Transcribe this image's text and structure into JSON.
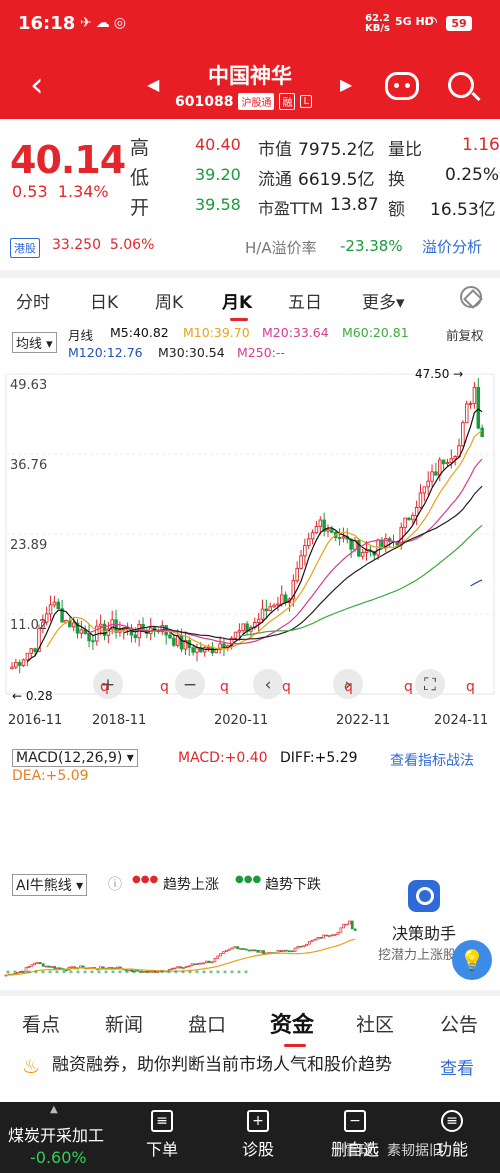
{
  "status_bar": {
    "time": "16:18",
    "net_speed": "62.2",
    "net_unit": "KB/s",
    "signal": "5G HD",
    "battery": "59"
  },
  "header": {
    "title": "中国神华",
    "code": "601088",
    "tag_connect": "沪股通",
    "tag_margin": "融",
    "tag_l": "L"
  },
  "quote": {
    "price": "40.14",
    "change": "0.53",
    "change_pct": "1.34%",
    "high_label": "高",
    "high": "40.40",
    "low_label": "低",
    "low": "39.20",
    "open_label": "开",
    "open": "39.58",
    "mktcap_label": "市值",
    "mktcap": "7975.2亿",
    "float_label": "流通",
    "float": "6619.5亿",
    "pe_label": "市盈TTM",
    "pe": "13.87",
    "vol_ratio_label": "量比",
    "vol_ratio": "1.16",
    "turnover_label": "换",
    "turnover": "0.25%",
    "amount_label": "额",
    "amount": "16.53亿"
  },
  "hk": {
    "tag": "港股",
    "price": "33.250",
    "change_pct": "5.06%",
    "premium_label": "H/A溢价率",
    "premium": "-23.38%",
    "premium_link": "溢价分析"
  },
  "period_tabs": [
    "分时",
    "日K",
    "周K",
    "月K",
    "五日",
    "更多▾"
  ],
  "active_period": 3,
  "ma_legend": {
    "type": "均线 ▾",
    "period": "月线",
    "m5": "M5:40.82",
    "m10": "M10:39.70",
    "m20": "M20:33.64",
    "m60": "M60:20.81",
    "m120": "M120:12.76",
    "m30": "M30:30.54",
    "m250": "M250:--",
    "adjust": "前复权"
  },
  "chart_data": {
    "type": "candlestick",
    "y_ticks": [
      "49.63",
      "36.76",
      "23.89",
      "11.02"
    ],
    "ylim": [
      -1.85,
      49.63
    ],
    "x_ticks": [
      "2016-11",
      "2018-11",
      "2020-11",
      "2022-11",
      "2024-11"
    ],
    "max_label": "47.50",
    "min_label": "0.28",
    "ma_colors": {
      "m5": "#111111",
      "m10": "#e8a317",
      "m20": "#d63c8f",
      "m60": "#3faa3f",
      "m120": "#2450b8",
      "m30": "#222222"
    }
  },
  "macd": {
    "title": "MACD(12,26,9) ▾",
    "macd": "MACD:+0.40",
    "diff": "DIFF:+5.29",
    "dea": "DEA:+5.09",
    "link": "查看指标战法"
  },
  "ai": {
    "title": "AI牛熊线 ▾",
    "up_label": "趋势上涨",
    "down_label": "趋势下跌"
  },
  "assistant": {
    "title": "决策助手",
    "subtitle": "挖潜力上涨股"
  },
  "section_tabs": [
    "看点",
    "新闻",
    "盘口",
    "资金",
    "社区",
    "公告"
  ],
  "active_section": 3,
  "banner": {
    "text": "融资融券，助你判断当前市场人气和股价趋势",
    "link": "查看"
  },
  "bottom_nav": {
    "sector_name": "煤炭开采加工",
    "sector_change": "-0.60%",
    "buttons": [
      "下单",
      "诊股",
      "删自选",
      "功能"
    ],
    "watermark": "雪球：素韧据旧"
  },
  "colors": {
    "red": "#e3262b",
    "green": "#1a9a3a",
    "header_bg": "#e81e25"
  }
}
